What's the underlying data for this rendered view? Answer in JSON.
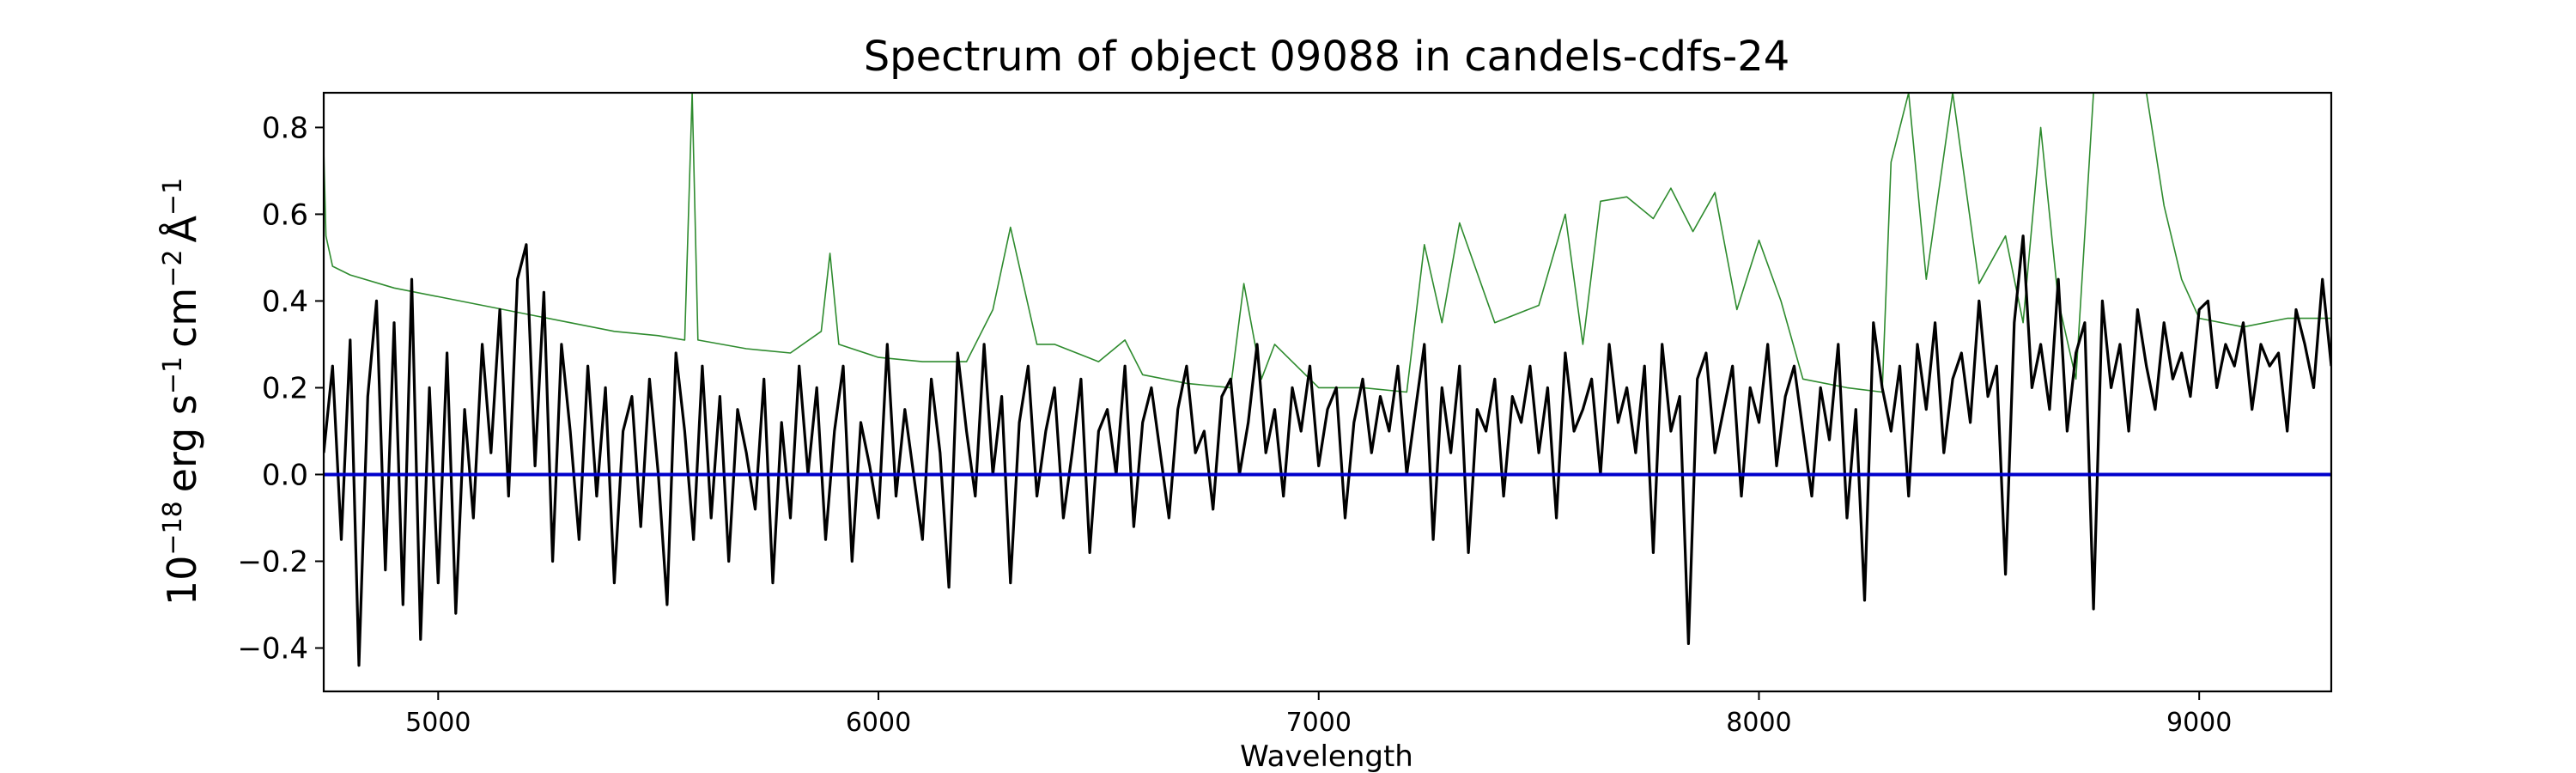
{
  "chart_data": {
    "type": "line",
    "title": "Spectrum of object 09088 in candels-cdfs-24",
    "xlabel": "Wavelength",
    "ylabel": "10^-18 erg s^-1 cm^-2 Å^-1",
    "ylabel_parts": {
      "base": "10",
      "exp1": "−18",
      "unit_erg": "erg s",
      "exp2": "−1",
      "unit_cm": "cm",
      "exp3": "−2",
      "unit_A": "Å",
      "exp4": "−1"
    },
    "xlim": [
      4740,
      9300
    ],
    "ylim": [
      -0.5,
      0.88
    ],
    "x_ticks": [
      5000,
      6000,
      7000,
      8000,
      9000
    ],
    "y_ticks": [
      -0.4,
      -0.2,
      0.0,
      0.2,
      0.4,
      0.6,
      0.8
    ],
    "x_tick_labels": [
      "5000",
      "6000",
      "7000",
      "8000",
      "9000"
    ],
    "y_tick_labels": [
      "−0.4",
      "−0.2",
      "0.0",
      "0.2",
      "0.4",
      "0.6",
      "0.8"
    ],
    "grid": false,
    "legend": false,
    "series": [
      {
        "role": "noise",
        "color": "#2e8b2e",
        "x": [
          4740,
          4745,
          4760,
          4800,
          4900,
          5000,
          5100,
          5200,
          5300,
          5400,
          5500,
          5560,
          5577,
          5590,
          5700,
          5800,
          5870,
          5890,
          5910,
          6000,
          6100,
          6200,
          6260,
          6300,
          6360,
          6400,
          6500,
          6560,
          6600,
          6700,
          6800,
          6830,
          6870,
          6900,
          7000,
          7100,
          7200,
          7240,
          7280,
          7320,
          7400,
          7500,
          7560,
          7600,
          7640,
          7700,
          7760,
          7800,
          7850,
          7900,
          7950,
          8000,
          8050,
          8100,
          8200,
          8280,
          8300,
          8340,
          8380,
          8440,
          8500,
          8560,
          8600,
          8640,
          8680,
          8720,
          8760,
          8800,
          8840,
          8880,
          8920,
          8960,
          9000,
          9100,
          9200,
          9300
        ],
        "y": [
          0.75,
          0.55,
          0.48,
          0.46,
          0.43,
          0.41,
          0.39,
          0.37,
          0.35,
          0.33,
          0.32,
          0.31,
          0.88,
          0.31,
          0.29,
          0.28,
          0.33,
          0.51,
          0.3,
          0.27,
          0.26,
          0.26,
          0.38,
          0.57,
          0.3,
          0.3,
          0.26,
          0.31,
          0.23,
          0.21,
          0.2,
          0.44,
          0.22,
          0.3,
          0.2,
          0.2,
          0.19,
          0.53,
          0.35,
          0.58,
          0.35,
          0.39,
          0.6,
          0.3,
          0.63,
          0.64,
          0.59,
          0.66,
          0.56,
          0.65,
          0.38,
          0.54,
          0.4,
          0.22,
          0.2,
          0.19,
          0.72,
          0.88,
          0.45,
          0.88,
          0.44,
          0.55,
          0.35,
          0.8,
          0.4,
          0.22,
          0.88,
          0.88,
          0.88,
          0.88,
          0.62,
          0.45,
          0.36,
          0.34,
          0.36,
          0.36
        ]
      },
      {
        "role": "spectrum",
        "color": "#000000",
        "x": [
          4740,
          4760,
          4780,
          4800,
          4820,
          4840,
          4860,
          4880,
          4900,
          4920,
          4940,
          4960,
          4980,
          5000,
          5020,
          5040,
          5060,
          5080,
          5100,
          5120,
          5140,
          5160,
          5180,
          5200,
          5220,
          5240,
          5260,
          5280,
          5300,
          5320,
          5340,
          5360,
          5380,
          5400,
          5420,
          5440,
          5460,
          5480,
          5500,
          5520,
          5540,
          5560,
          5580,
          5600,
          5620,
          5640,
          5660,
          5680,
          5700,
          5720,
          5740,
          5760,
          5780,
          5800,
          5820,
          5840,
          5860,
          5880,
          5900,
          5920,
          5940,
          5960,
          5980,
          6000,
          6020,
          6040,
          6060,
          6080,
          6100,
          6120,
          6140,
          6160,
          6180,
          6200,
          6220,
          6240,
          6260,
          6280,
          6300,
          6320,
          6340,
          6360,
          6380,
          6400,
          6420,
          6440,
          6460,
          6480,
          6500,
          6520,
          6540,
          6560,
          6580,
          6600,
          6620,
          6640,
          6660,
          6680,
          6700,
          6720,
          6740,
          6760,
          6780,
          6800,
          6820,
          6840,
          6860,
          6880,
          6900,
          6920,
          6940,
          6960,
          6980,
          7000,
          7020,
          7040,
          7060,
          7080,
          7100,
          7120,
          7140,
          7160,
          7180,
          7200,
          7220,
          7240,
          7260,
          7280,
          7300,
          7320,
          7340,
          7360,
          7380,
          7400,
          7420,
          7440,
          7460,
          7480,
          7500,
          7520,
          7540,
          7560,
          7580,
          7600,
          7620,
          7640,
          7660,
          7680,
          7700,
          7720,
          7740,
          7760,
          7780,
          7800,
          7820,
          7840,
          7860,
          7880,
          7900,
          7920,
          7940,
          7960,
          7980,
          8000,
          8020,
          8040,
          8060,
          8080,
          8100,
          8120,
          8140,
          8160,
          8180,
          8200,
          8220,
          8240,
          8260,
          8280,
          8300,
          8320,
          8340,
          8360,
          8380,
          8400,
          8420,
          8440,
          8460,
          8480,
          8500,
          8520,
          8540,
          8560,
          8580,
          8600,
          8620,
          8640,
          8660,
          8680,
          8700,
          8720,
          8740,
          8760,
          8780,
          8800,
          8820,
          8840,
          8860,
          8880,
          8900,
          8920,
          8940,
          8960,
          8980,
          9000,
          9020,
          9040,
          9060,
          9080,
          9100,
          9120,
          9140,
          9160,
          9180,
          9200,
          9220,
          9240,
          9260,
          9280,
          9300
        ],
        "y": [
          0.05,
          0.25,
          -0.15,
          0.31,
          -0.44,
          0.18,
          0.4,
          -0.22,
          0.35,
          -0.3,
          0.45,
          -0.38,
          0.2,
          -0.25,
          0.28,
          -0.32,
          0.15,
          -0.1,
          0.3,
          0.05,
          0.38,
          -0.05,
          0.45,
          0.53,
          0.02,
          0.42,
          -0.2,
          0.3,
          0.1,
          -0.15,
          0.25,
          -0.05,
          0.2,
          -0.25,
          0.1,
          0.18,
          -0.12,
          0.22,
          0.0,
          -0.3,
          0.28,
          0.1,
          -0.15,
          0.25,
          -0.1,
          0.18,
          -0.2,
          0.15,
          0.05,
          -0.08,
          0.22,
          -0.25,
          0.12,
          -0.1,
          0.25,
          0.0,
          0.2,
          -0.15,
          0.1,
          0.25,
          -0.2,
          0.12,
          0.02,
          -0.1,
          0.3,
          -0.05,
          0.15,
          0.0,
          -0.15,
          0.22,
          0.05,
          -0.26,
          0.28,
          0.1,
          -0.05,
          0.3,
          0.0,
          0.18,
          -0.25,
          0.12,
          0.25,
          -0.05,
          0.1,
          0.2,
          -0.1,
          0.05,
          0.22,
          -0.18,
          0.1,
          0.15,
          0.0,
          0.25,
          -0.12,
          0.12,
          0.2,
          0.05,
          -0.1,
          0.15,
          0.25,
          0.05,
          0.1,
          -0.08,
          0.18,
          0.22,
          0.0,
          0.12,
          0.3,
          0.05,
          0.15,
          -0.05,
          0.2,
          0.1,
          0.25,
          0.02,
          0.15,
          0.2,
          -0.1,
          0.12,
          0.22,
          0.05,
          0.18,
          0.1,
          0.25,
          0.0,
          0.15,
          0.3,
          -0.15,
          0.2,
          0.05,
          0.25,
          -0.18,
          0.15,
          0.1,
          0.22,
          -0.05,
          0.18,
          0.12,
          0.25,
          0.05,
          0.2,
          -0.1,
          0.28,
          0.1,
          0.15,
          0.22,
          0.0,
          0.3,
          0.12,
          0.2,
          0.05,
          0.25,
          -0.18,
          0.3,
          0.1,
          0.18,
          -0.39,
          0.22,
          0.28,
          0.05,
          0.15,
          0.25,
          -0.05,
          0.2,
          0.12,
          0.3,
          0.02,
          0.18,
          0.25,
          0.1,
          -0.05,
          0.2,
          0.08,
          0.3,
          -0.1,
          0.15,
          -0.29,
          0.35,
          0.2,
          0.1,
          0.25,
          -0.05,
          0.3,
          0.15,
          0.35,
          0.05,
          0.22,
          0.28,
          0.12,
          0.4,
          0.18,
          0.25,
          -0.23,
          0.35,
          0.55,
          0.2,
          0.3,
          0.15,
          0.45,
          0.1,
          0.28,
          0.35,
          -0.31,
          0.4,
          0.2,
          0.3,
          0.1,
          0.38,
          0.25,
          0.15,
          0.35,
          0.22,
          0.28,
          0.18,
          0.38,
          0.4,
          0.2,
          0.3,
          0.25,
          0.35,
          0.15,
          0.3,
          0.25,
          0.28,
          0.1,
          0.38,
          0.3,
          0.2,
          0.45,
          0.25
        ]
      },
      {
        "role": "zero",
        "color": "#0000cc",
        "x": [
          4740,
          9300
        ],
        "y": [
          0.0,
          0.0
        ]
      }
    ]
  }
}
